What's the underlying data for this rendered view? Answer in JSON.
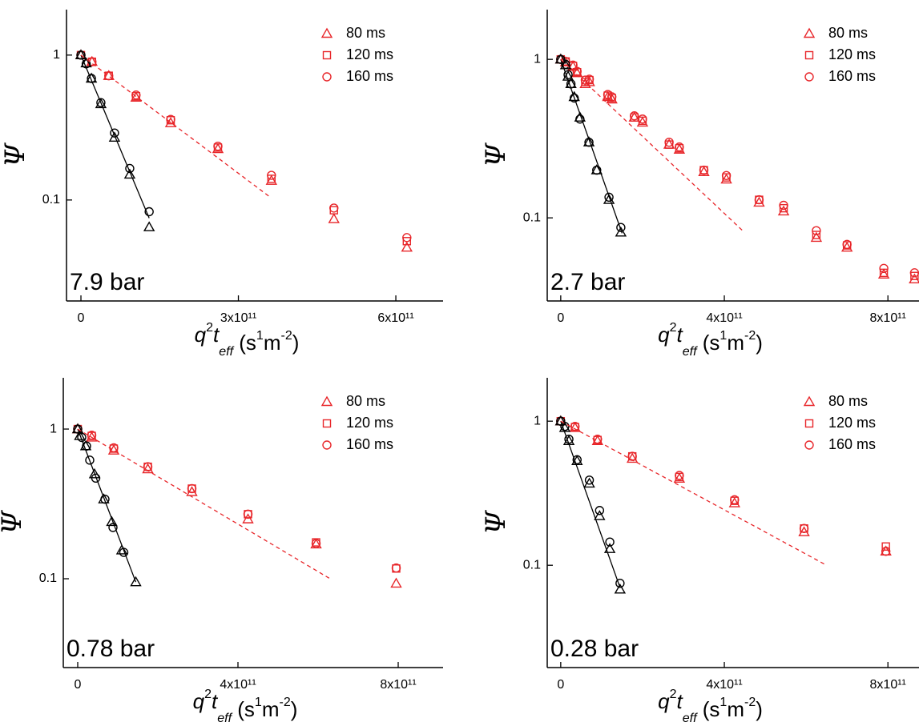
{
  "chart_data": [
    {
      "type": "scatter",
      "annotation": "7.9 bar",
      "ylabel": "Ψ",
      "xlabel_parts": [
        "q",
        "2",
        "t",
        "eff",
        " (s",
        "1",
        "m",
        "-2",
        ")"
      ],
      "log_y": true,
      "xlim": [
        -27500000000.0,
        690000000000.0
      ],
      "ylim": [
        0.0201,
        2.06
      ],
      "xticks": [
        0,
        {
          "value": 300000000000.0,
          "label": "3x10¹¹"
        },
        {
          "value": 600000000000.0,
          "label": "6x10¹¹"
        }
      ],
      "yticks": [
        0.1,
        1
      ],
      "series": [
        {
          "name": "80 ms",
          "color": "#e8262a",
          "marker": "triangle",
          "x": [
            0,
            21000000000.0,
            53000000000.0,
            105000000000.0,
            171000000000.0,
            261000000000.0,
            363000000000.0,
            482000000000.0,
            621000000000.0
          ],
          "values": [
            1,
            0.9,
            0.72,
            0.51,
            0.34,
            0.225,
            0.136,
            0.074,
            0.047
          ]
        },
        {
          "name": "120 ms",
          "color": "#e8262a",
          "marker": "square",
          "x": [
            0,
            21000000000.0,
            53000000000.0,
            105000000000.0,
            171000000000.0,
            261000000000.0,
            363000000000.0,
            482000000000.0,
            621000000000.0
          ],
          "values": [
            1,
            0.9,
            0.72,
            0.52,
            0.355,
            0.23,
            0.14,
            0.085,
            0.052
          ]
        },
        {
          "name": "160 ms",
          "color": "#e8262a",
          "marker": "circle",
          "x": [
            0,
            21000000000.0,
            53000000000.0,
            105000000000.0,
            171000000000.0,
            261000000000.0,
            363000000000.0,
            482000000000.0,
            621000000000.0
          ],
          "values": [
            1,
            0.9,
            0.72,
            0.53,
            0.36,
            0.235,
            0.148,
            0.088,
            0.055
          ]
        },
        {
          "color": "#000000",
          "marker": "triangle",
          "x": [
            0,
            10000000000.0,
            20000000000.0,
            38000000000.0,
            64000000000.0,
            93000000000.0,
            130000000000.0
          ],
          "values": [
            1,
            0.88,
            0.69,
            0.46,
            0.27,
            0.15,
            0.065
          ]
        },
        {
          "color": "#000000",
          "marker": "circle",
          "x": [
            0,
            10000000000.0,
            20000000000.0,
            38000000000.0,
            64000000000.0,
            93000000000.0,
            130000000000.0
          ],
          "values": [
            1,
            0.87,
            0.69,
            0.47,
            0.29,
            0.165,
            0.083
          ]
        },
        {
          "color": "#000000",
          "marker": "line",
          "x": [
            0,
            130000000000.0
          ],
          "values": [
            1,
            0.075
          ]
        },
        {
          "color": "#e8262a",
          "marker": "dashed",
          "x": [
            0,
            360000000000.0
          ],
          "values": [
            1,
            0.105
          ]
        }
      ]
    },
    {
      "type": "scatter",
      "annotation": "2.7 bar",
      "ylabel": "Ψ",
      "xlabel_parts": [
        "q",
        "2",
        "t",
        "eff",
        " (s",
        "1",
        "m",
        "-2",
        ")"
      ],
      "log_y": true,
      "xlim": [
        -33000000000.0,
        876000000000.0
      ],
      "ylim": [
        0.0299,
        2.06
      ],
      "xticks": [
        0,
        {
          "value": 400000000000.0,
          "label": "4x10¹¹"
        },
        {
          "value": 800000000000.0,
          "label": "8x10¹¹"
        }
      ],
      "yticks": [
        0.1,
        1
      ],
      "series": [
        {
          "name": "80 ms",
          "color": "#e8262a",
          "marker": "triangle",
          "x": [
            0,
            12000000000.0,
            30000000000.0,
            40000000000.0,
            60000000000.0,
            70000000000.0,
            115000000000.0,
            125000000000.0,
            180000000000.0,
            200000000000.0,
            265000000000.0,
            290000000000.0,
            350000000000.0,
            405000000000.0,
            485000000000.0,
            545000000000.0,
            625000000000.0,
            700000000000.0,
            790000000000.0,
            865000000000.0
          ],
          "values": [
            1,
            0.96,
            0.9,
            0.82,
            0.7,
            0.72,
            0.58,
            0.56,
            0.43,
            0.4,
            0.29,
            0.27,
            0.195,
            0.175,
            0.125,
            0.11,
            0.075,
            0.065,
            0.044,
            0.041
          ]
        },
        {
          "name": "120 ms",
          "color": "#e8262a",
          "marker": "square",
          "x": [
            0,
            12000000000.0,
            30000000000.0,
            40000000000.0,
            60000000000.0,
            70000000000.0,
            115000000000.0,
            125000000000.0,
            180000000000.0,
            200000000000.0,
            265000000000.0,
            290000000000.0,
            350000000000.0,
            405000000000.0,
            485000000000.0,
            545000000000.0,
            625000000000.0,
            700000000000.0,
            790000000000.0,
            865000000000.0
          ],
          "values": [
            1,
            0.97,
            0.91,
            0.83,
            0.72,
            0.74,
            0.59,
            0.57,
            0.43,
            0.41,
            0.29,
            0.275,
            0.2,
            0.18,
            0.13,
            0.115,
            0.078,
            0.067,
            0.045,
            0.043
          ]
        },
        {
          "name": "160 ms",
          "color": "#e8262a",
          "marker": "circle",
          "x": [
            0,
            12000000000.0,
            30000000000.0,
            40000000000.0,
            60000000000.0,
            70000000000.0,
            115000000000.0,
            125000000000.0,
            180000000000.0,
            200000000000.0,
            265000000000.0,
            290000000000.0,
            350000000000.0,
            405000000000.0,
            485000000000.0,
            545000000000.0,
            625000000000.0,
            700000000000.0,
            790000000000.0,
            865000000000.0
          ],
          "values": [
            1,
            0.97,
            0.92,
            0.84,
            0.74,
            0.75,
            0.6,
            0.58,
            0.44,
            0.42,
            0.3,
            0.28,
            0.2,
            0.185,
            0.13,
            0.12,
            0.083,
            0.068,
            0.048,
            0.045
          ]
        },
        {
          "color": "#000000",
          "marker": "triangle",
          "x": [
            0,
            12000000000.0,
            18000000000.0,
            25000000000.0,
            33000000000.0,
            47000000000.0,
            69000000000.0,
            88000000000.0,
            118000000000.0,
            147000000000.0
          ],
          "values": [
            1,
            0.92,
            0.78,
            0.7,
            0.58,
            0.43,
            0.3,
            0.2,
            0.13,
            0.081
          ]
        },
        {
          "color": "#000000",
          "marker": "circle",
          "x": [
            0,
            12000000000.0,
            18000000000.0,
            25000000000.0,
            33000000000.0,
            47000000000.0,
            69000000000.0,
            88000000000.0,
            118000000000.0,
            147000000000.0
          ],
          "values": [
            1,
            0.93,
            0.8,
            0.7,
            0.57,
            0.42,
            0.3,
            0.2,
            0.135,
            0.087
          ]
        },
        {
          "color": "#000000",
          "marker": "line",
          "x": [
            0,
            150000000000.0
          ],
          "values": [
            1,
            0.08
          ]
        },
        {
          "color": "#e8262a",
          "marker": "dashed",
          "x": [
            0,
            447000000000.0
          ],
          "values": [
            1,
            0.082
          ]
        }
      ]
    },
    {
      "type": "scatter",
      "annotation": "0.78 bar",
      "ylabel": "Ψ",
      "xlabel_parts": [
        "q",
        "2",
        "t",
        "eff",
        " (s",
        "1",
        "m",
        "-2",
        ")"
      ],
      "log_y": true,
      "xlim": [
        -36000000000.0,
        912000000000.0
      ],
      "ylim": [
        0.0255,
        2.2
      ],
      "xticks": [
        0,
        {
          "value": 400000000000.0,
          "label": "4x10¹¹"
        },
        {
          "value": 800000000000.0,
          "label": "8x10¹¹"
        }
      ],
      "yticks": [
        0.1,
        1
      ],
      "series": [
        {
          "name": "80 ms",
          "color": "#e8262a",
          "marker": "triangle",
          "x": [
            0,
            35000000000.0,
            90000000000.0,
            175000000000.0,
            285000000000.0,
            425000000000.0,
            595000000000.0,
            795000000000.0
          ],
          "values": [
            1,
            0.88,
            0.72,
            0.54,
            0.38,
            0.25,
            0.17,
            0.093
          ]
        },
        {
          "name": "120 ms",
          "color": "#e8262a",
          "marker": "square",
          "x": [
            0,
            35000000000.0,
            90000000000.0,
            175000000000.0,
            285000000000.0,
            425000000000.0,
            595000000000.0,
            795000000000.0
          ],
          "values": [
            1,
            0.9,
            0.74,
            0.56,
            0.4,
            0.27,
            0.175,
            0.117
          ]
        },
        {
          "name": "160 ms",
          "color": "#e8262a",
          "marker": "circle",
          "x": [
            0,
            35000000000.0,
            90000000000.0,
            175000000000.0,
            285000000000.0,
            425000000000.0,
            595000000000.0,
            795000000000.0
          ],
          "values": [
            1,
            0.91,
            0.75,
            0.56,
            0.4,
            0.27,
            0.172,
            0.118
          ]
        },
        {
          "color": "#000000",
          "marker": "triangle",
          "x": [
            0,
            5000000000.0,
            20000000000.0,
            42000000000.0,
            65000000000.0,
            85000000000.0,
            110000000000.0,
            145000000000.0
          ],
          "values": [
            1,
            0.9,
            0.77,
            0.5,
            0.34,
            0.24,
            0.155,
            0.095
          ]
        },
        {
          "color": "#000000",
          "marker": "circle",
          "x": [
            0,
            10000000000.0,
            22000000000.0,
            30000000000.0,
            45000000000.0,
            68000000000.0,
            88000000000.0,
            115000000000.0
          ],
          "values": [
            1,
            0.88,
            0.77,
            0.62,
            0.47,
            0.34,
            0.22,
            0.15
          ]
        },
        {
          "color": "#000000",
          "marker": "line",
          "x": [
            0,
            145000000000.0
          ],
          "values": [
            1,
            0.095
          ]
        },
        {
          "color": "#e8262a",
          "marker": "dashed",
          "x": [
            0,
            630000000000.0
          ],
          "values": [
            1,
            0.1
          ]
        }
      ]
    },
    {
      "type": "scatter",
      "annotation": "0.28 bar",
      "ylabel": "Ψ",
      "xlabel_parts": [
        "q",
        "2",
        "t",
        "eff",
        " (s",
        "1",
        "m",
        "-2",
        ")"
      ],
      "log_y": true,
      "xlim": [
        -33000000000.0,
        876000000000.0
      ],
      "ylim": [
        0.0195,
        2.0
      ],
      "xticks": [
        0,
        {
          "value": 400000000000.0,
          "label": "4x10¹¹"
        },
        {
          "value": 800000000000.0,
          "label": "8x10¹¹"
        }
      ],
      "yticks": [
        0.1,
        1
      ],
      "series": [
        {
          "name": "80 ms",
          "color": "#e8262a",
          "marker": "triangle",
          "x": [
            0,
            35000000000.0,
            90000000000.0,
            175000000000.0,
            290000000000.0,
            425000000000.0,
            595000000000.0,
            795000000000.0
          ],
          "values": [
            1,
            0.9,
            0.73,
            0.55,
            0.4,
            0.27,
            0.17,
            0.125
          ]
        },
        {
          "name": "120 ms",
          "color": "#e8262a",
          "marker": "square",
          "x": [
            0,
            35000000000.0,
            90000000000.0,
            175000000000.0,
            290000000000.0,
            425000000000.0,
            595000000000.0,
            795000000000.0
          ],
          "values": [
            1,
            0.91,
            0.74,
            0.57,
            0.41,
            0.28,
            0.18,
            0.135
          ]
        },
        {
          "name": "160 ms",
          "color": "#e8262a",
          "marker": "circle",
          "x": [
            0,
            35000000000.0,
            90000000000.0,
            175000000000.0,
            290000000000.0,
            425000000000.0,
            595000000000.0,
            795000000000.0
          ],
          "values": [
            1,
            0.92,
            0.75,
            0.57,
            0.42,
            0.285,
            0.18,
            0.125
          ]
        },
        {
          "color": "#000000",
          "marker": "triangle",
          "x": [
            0,
            10000000000.0,
            20000000000.0,
            40000000000.0,
            70000000000.0,
            95000000000.0,
            120000000000.0,
            145000000000.0
          ],
          "values": [
            1,
            0.9,
            0.73,
            0.53,
            0.37,
            0.22,
            0.13,
            0.068
          ]
        },
        {
          "color": "#000000",
          "marker": "circle",
          "x": [
            0,
            10000000000.0,
            20000000000.0,
            40000000000.0,
            70000000000.0,
            95000000000.0,
            120000000000.0,
            145000000000.0
          ],
          "values": [
            1,
            0.92,
            0.75,
            0.54,
            0.39,
            0.24,
            0.145,
            0.075
          ]
        },
        {
          "color": "#000000",
          "marker": "line",
          "x": [
            0,
            145000000000.0
          ],
          "values": [
            1,
            0.07
          ]
        },
        {
          "color": "#e8262a",
          "marker": "dashed",
          "x": [
            0,
            650000000000.0
          ],
          "values": [
            1,
            0.1
          ]
        }
      ]
    }
  ]
}
